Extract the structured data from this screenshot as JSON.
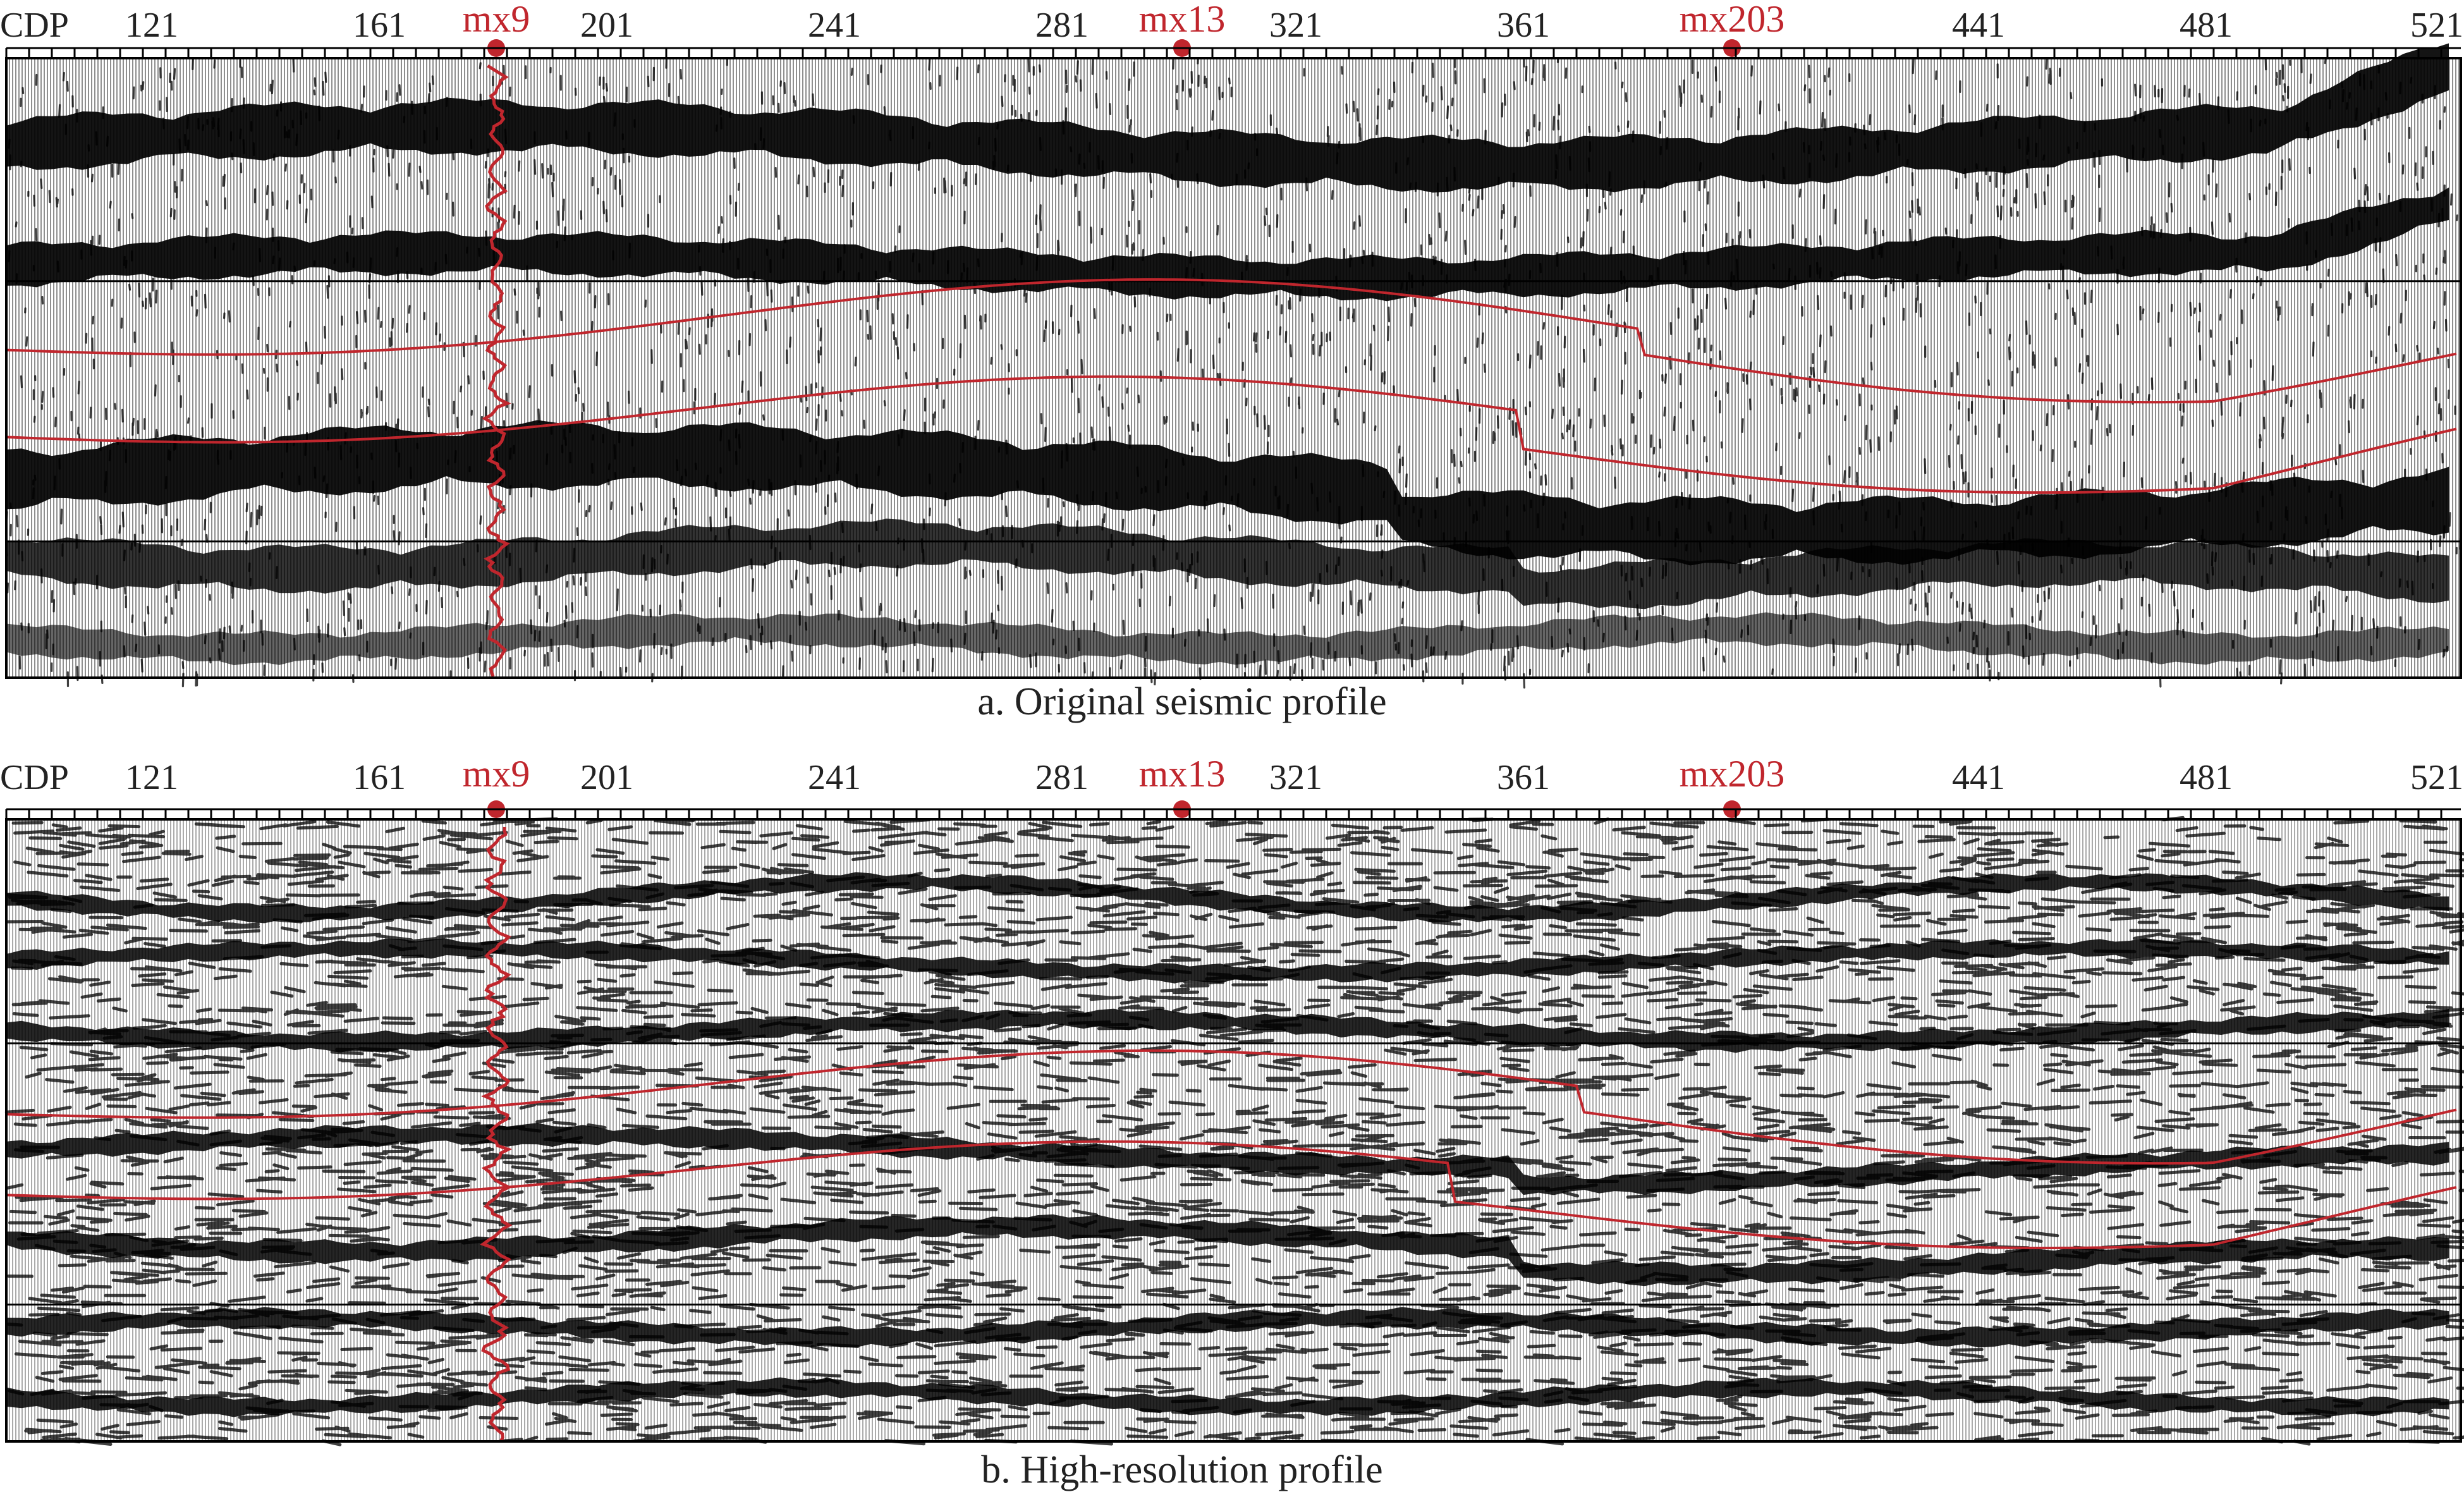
{
  "colors": {
    "well": "#c0262d",
    "horizon": "#c0262d",
    "trace": "#000000",
    "background": "#ffffff"
  },
  "panels": [
    {
      "id": "a",
      "axis_label": "CDP",
      "cdp_ticks": [
        "121",
        "161",
        "201",
        "241",
        "281",
        "321",
        "361",
        "441",
        "481",
        "521"
      ],
      "wells": [
        "mx9",
        "mx13",
        "mx203"
      ],
      "caption": "a. Original seismic profile"
    },
    {
      "id": "b",
      "axis_label": "CDP",
      "cdp_ticks": [
        "121",
        "161",
        "201",
        "241",
        "281",
        "321",
        "361",
        "441",
        "481",
        "521"
      ],
      "wells": [
        "mx9",
        "mx13",
        "mx203"
      ],
      "caption": "b. High-resolution profile"
    }
  ]
}
